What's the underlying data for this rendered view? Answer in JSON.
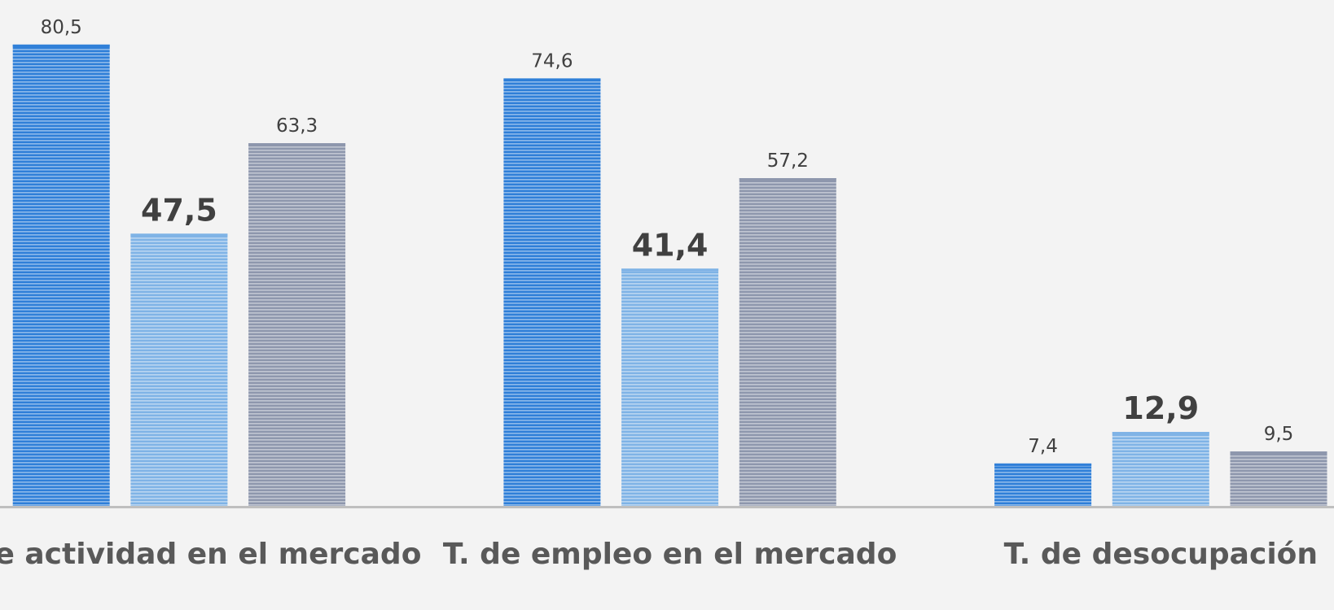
{
  "chart_data": {
    "type": "bar",
    "categories": [
      "T. de actividad en el mercado",
      "T. de empleo en el mercado",
      "T. de desocupación"
    ],
    "series": [
      {
        "color": "#2f7fd8",
        "values": [
          80.5,
          74.6,
          7.4
        ],
        "value_labels": [
          "80,5",
          "74,6",
          "7,4"
        ]
      },
      {
        "color": "#7fb3e6",
        "values": [
          47.5,
          41.4,
          12.9
        ],
        "value_labels": [
          "47,5",
          "41,4",
          "12,9"
        ]
      },
      {
        "color": "#8e97ad",
        "values": [
          63.3,
          57.2,
          9.5
        ],
        "value_labels": [
          "63,3",
          "57,2",
          "9,5"
        ]
      }
    ],
    "ylim": [
      0,
      88
    ]
  }
}
